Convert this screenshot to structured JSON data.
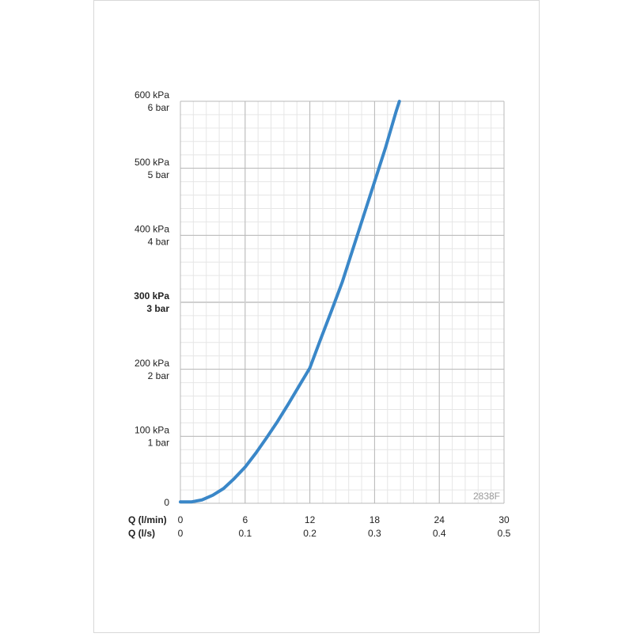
{
  "chart_data": {
    "type": "line",
    "x_label": "Q (l/min)",
    "x2_label": "Q (l/s)",
    "annotation": "2838F",
    "xlim": [
      0,
      30
    ],
    "xticks": [
      0,
      6,
      12,
      18,
      24,
      30
    ],
    "x2lim": [
      0,
      0.5
    ],
    "x2ticks": [
      0,
      0.1,
      0.2,
      0.3,
      0.4,
      0.5
    ],
    "ylim": [
      0,
      600
    ],
    "yticks": [
      0,
      {
        "value": 100,
        "label": "100 kPa"
      },
      {
        "value": 200,
        "label": "200 kPa"
      },
      {
        "value": 300,
        "label": "300 kPa"
      },
      {
        "value": 400,
        "label": "400 kPa"
      },
      {
        "value": 500,
        "label": "500 kPa"
      },
      {
        "value": 600,
        "label": "600 kPa"
      }
    ],
    "y2lim": [
      0,
      6
    ],
    "y2ticks": [
      {
        "value": 1,
        "label": "1 bar"
      },
      {
        "value": 2,
        "label": "2 bar"
      },
      {
        "value": 3,
        "label": "3 bar"
      },
      {
        "value": 4,
        "label": "4 bar"
      },
      {
        "value": 5,
        "label": "5 bar"
      },
      {
        "value": 6,
        "label": "6 bar"
      }
    ],
    "emphasis_y": 300,
    "grid": true,
    "x_minor_step": 1.2,
    "y_minor_step": 20,
    "series": [
      {
        "color": "#3a87c8",
        "x": [
          0,
          1,
          2,
          3,
          4,
          5,
          6,
          7,
          8,
          9,
          10,
          11,
          12,
          13,
          14,
          15,
          16,
          17,
          18,
          19,
          20,
          20.3
        ],
        "values": [
          2,
          2,
          5,
          12,
          22,
          37,
          54,
          75,
          98,
          122,
          148,
          175,
          202,
          245,
          287,
          330,
          380,
          430,
          480,
          530,
          585,
          600
        ]
      }
    ]
  }
}
